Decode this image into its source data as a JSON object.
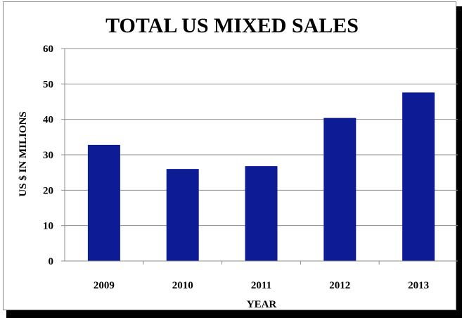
{
  "chart_data": {
    "type": "bar",
    "title": "TOTAL US MIXED SALES",
    "xlabel": "YEAR",
    "ylabel": "US $ IN MILIONS",
    "categories": [
      "2009",
      "2010",
      "2011",
      "2012",
      "2013"
    ],
    "values": [
      32.8,
      26.0,
      26.8,
      40.4,
      47.6
    ],
    "ylim": [
      0,
      60
    ],
    "yticks": [
      "0",
      "10",
      "20",
      "30",
      "40",
      "50",
      "60"
    ],
    "grid": true,
    "legend": "none",
    "bar_color": "#0D1B94"
  }
}
